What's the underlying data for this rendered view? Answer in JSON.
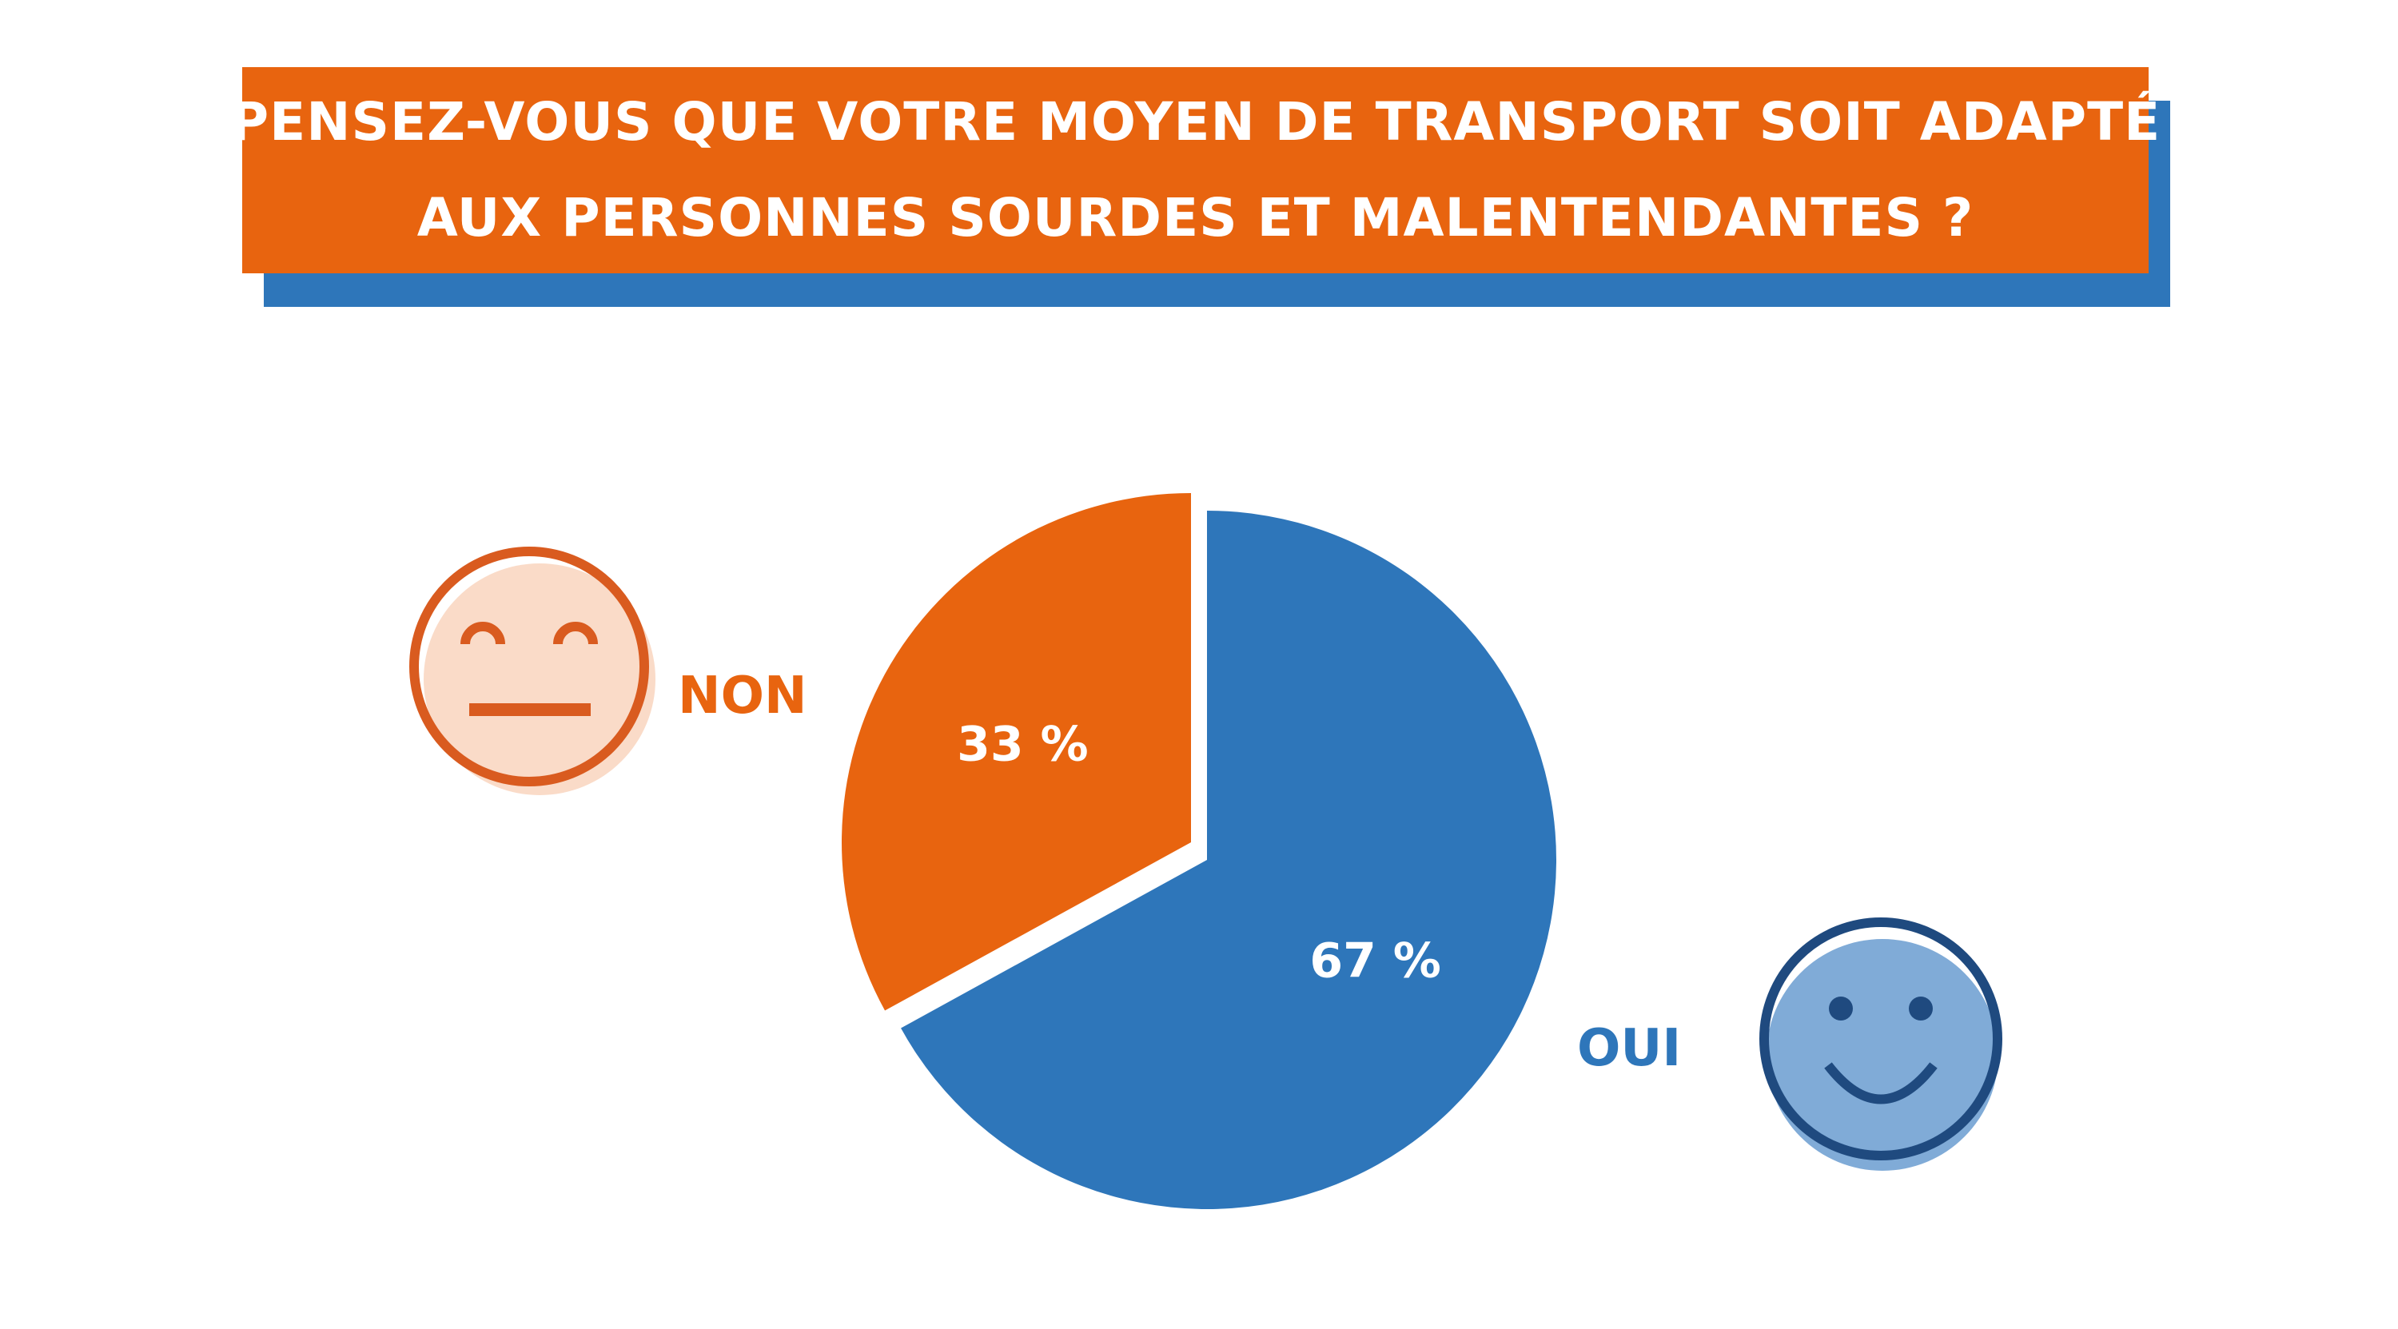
{
  "colors": {
    "orange": "#E8640F",
    "blue": "#2E76BA",
    "orange_light": "#FADBC8",
    "orange_dark": "#D95B1F",
    "blue_light": "#80ABD7",
    "blue_dark": "#1F4A7F"
  },
  "chart_data": {
    "type": "pie",
    "title": "PENSEZ-VOUS QUE VOTRE MOYEN DE TRANSPORT SOIT ADAPTÉ AUX PERSONNES SOURDES ET MALENTENDANTES ?",
    "title_lines": [
      "PENSEZ-VOUS QUE VOTRE MOYEN DE TRANSPORT SOIT ADAPTÉ",
      "AUX PERSONNES SOURDES ET MALENTENDANTES ?"
    ],
    "slices": [
      {
        "label": "OUI",
        "value": 67,
        "display": "67 %",
        "color": "#2E76BA",
        "icon": "smiling-face-icon"
      },
      {
        "label": "NON",
        "value": 33,
        "display": "33 %",
        "color": "#E8640F",
        "icon": "neutral-face-icon"
      }
    ],
    "start_angle": "12 o'clock, clockwise",
    "legend": "icons beside pie (NON left, OUI right)"
  }
}
